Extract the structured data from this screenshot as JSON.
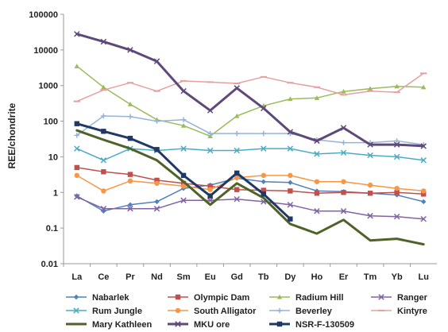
{
  "chart_data": {
    "type": "line",
    "title": "",
    "xlabel": "",
    "ylabel": "REE/chondrite",
    "yscale": "log",
    "ylim": [
      0.01,
      100000
    ],
    "y_ticks": [
      "0.01",
      "0.1",
      "1",
      "10",
      "100",
      "1000",
      "10000",
      "100000"
    ],
    "grid": false,
    "legend_position": "bottom",
    "categories": [
      "La",
      "Ce",
      "Pr",
      "Nd",
      "Sm",
      "Eu",
      "Gd",
      "Tb",
      "Dy",
      "Ho",
      "Er",
      "Tm",
      "Yb",
      "Lu"
    ],
    "series": [
      {
        "name": "Nabarlek",
        "color": "#4f81bd",
        "marker": "diamond",
        "width": 1.5,
        "values": [
          0.8,
          0.3,
          0.45,
          0.55,
          1.3,
          1.6,
          2.5,
          2.0,
          1.9,
          1.1,
          1.05,
          0.95,
          0.85,
          0.55
        ]
      },
      {
        "name": "Olympic Dam",
        "color": "#c0504d",
        "marker": "square",
        "width": 1.5,
        "values": [
          5.0,
          3.8,
          3.2,
          2.2,
          1.8,
          1.5,
          1.2,
          1.15,
          1.1,
          0.95,
          1.0,
          0.95,
          1.0,
          0.9
        ]
      },
      {
        "name": "Radium Hill",
        "color": "#9bbb59",
        "marker": "triangle",
        "width": 1.5,
        "values": [
          3500,
          900,
          300,
          110,
          75,
          38,
          140,
          270,
          420,
          450,
          680,
          820,
          950,
          900
        ]
      },
      {
        "name": "Ranger",
        "color": "#8064a2",
        "marker": "x",
        "width": 1.5,
        "values": [
          0.75,
          0.35,
          0.35,
          0.35,
          0.6,
          0.6,
          0.65,
          0.55,
          0.45,
          0.3,
          0.3,
          0.22,
          0.21,
          0.18
        ]
      },
      {
        "name": "Rum Jungle",
        "color": "#4bacc6",
        "marker": "x",
        "width": 1.5,
        "values": [
          17,
          8,
          17,
          15,
          17,
          15,
          15,
          17,
          17,
          12,
          13,
          11,
          10,
          8
        ]
      },
      {
        "name": "South Alligator",
        "color": "#f79646",
        "marker": "circle",
        "width": 1.5,
        "values": [
          3.0,
          1.1,
          2.1,
          1.8,
          1.5,
          1.2,
          2.6,
          3.0,
          3.0,
          2.0,
          2.0,
          1.6,
          1.3,
          1.1
        ]
      },
      {
        "name": "Beverley",
        "color": "#95b3d7",
        "marker": "plus",
        "width": 1.5,
        "values": [
          40,
          140,
          135,
          100,
          110,
          45,
          45,
          45,
          45,
          30,
          25,
          25,
          28,
          22
        ]
      },
      {
        "name": "Kintyre",
        "color": "#e6a0a0",
        "marker": "dash",
        "width": 1.5,
        "values": [
          360,
          750,
          1200,
          700,
          1350,
          1250,
          1150,
          1750,
          1200,
          900,
          550,
          700,
          650,
          2200
        ]
      },
      {
        "name": "Mary Kathleen",
        "color": "#4f6228",
        "marker": "none",
        "width": 3,
        "values": [
          55,
          30,
          17,
          8,
          2.0,
          0.45,
          1.8,
          0.7,
          0.13,
          0.07,
          0.17,
          0.045,
          0.05,
          0.035
        ]
      },
      {
        "name": "MKU ore",
        "color": "#5f497a",
        "marker": "x",
        "width": 3,
        "values": [
          28000,
          17000,
          10000,
          4800,
          700,
          200,
          850,
          230,
          50,
          28,
          65,
          22,
          22,
          20
        ]
      },
      {
        "name": "NSR-F-130509",
        "color": "#1f3864",
        "marker": "square",
        "width": 3,
        "values": [
          85,
          52,
          33,
          16,
          3.0,
          0.8,
          3.5,
          0.9,
          0.18,
          null,
          null,
          null,
          null,
          null
        ]
      }
    ]
  }
}
